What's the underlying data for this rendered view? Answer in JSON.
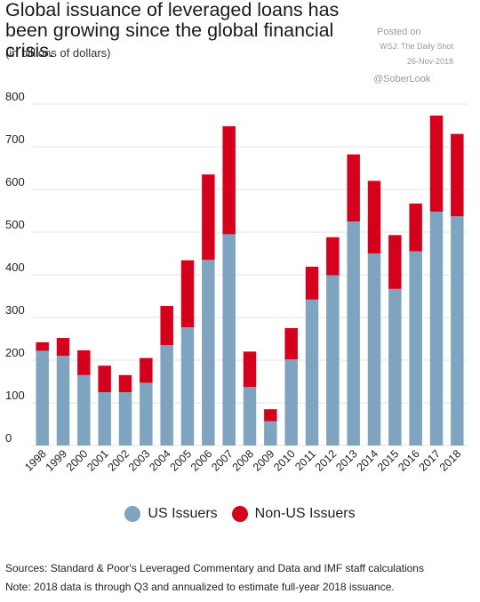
{
  "header": {
    "title": "Global issuance of leveraged loans has been growing since the global financial crisis.",
    "subtitle": "(in billions of dollars)",
    "posted_on": "Posted on",
    "source": "WSJ: The Daily Shot",
    "date": "26-Nov-2018",
    "handle": "@SoberLook"
  },
  "colors": {
    "us": "#7ea4bf",
    "non_us": "#d5001c",
    "grid": "#e3e3e3"
  },
  "chart_data": {
    "type": "bar",
    "stacked": true,
    "title": "Global issuance of leveraged loans has been growing since the global financial crisis.",
    "subtitle": "(in billions of dollars)",
    "xlabel": "",
    "ylabel": "",
    "ylim": [
      0,
      800
    ],
    "yticks": [
      0,
      100,
      200,
      300,
      400,
      500,
      600,
      700,
      800
    ],
    "grid": true,
    "legend": "bottom",
    "categories": [
      "1998",
      "1999",
      "2000",
      "2001",
      "2002",
      "2003",
      "2004",
      "2005",
      "2006",
      "2007",
      "2008",
      "2009",
      "2010",
      "2011",
      "2012",
      "2013",
      "2014",
      "2015",
      "2016",
      "2017",
      "2018"
    ],
    "series": [
      {
        "name": "US Issuers",
        "values": [
          222,
          210,
          165,
          125,
          125,
          147,
          235,
          277,
          435,
          495,
          137,
          57,
          202,
          342,
          399,
          525,
          450,
          367,
          455,
          548,
          537
        ]
      },
      {
        "name": "Non-US Issuers",
        "values": [
          20,
          42,
          58,
          62,
          40,
          58,
          92,
          157,
          200,
          253,
          83,
          28,
          73,
          77,
          89,
          157,
          170,
          126,
          112,
          225,
          193
        ]
      }
    ]
  },
  "footer": {
    "sources": "Sources: Standard & Poor's Leveraged Commentary and Data and IMF staff calculations",
    "note": "Note: 2018 data is through Q3 and annualized to estimate full-year 2018 issuance."
  }
}
